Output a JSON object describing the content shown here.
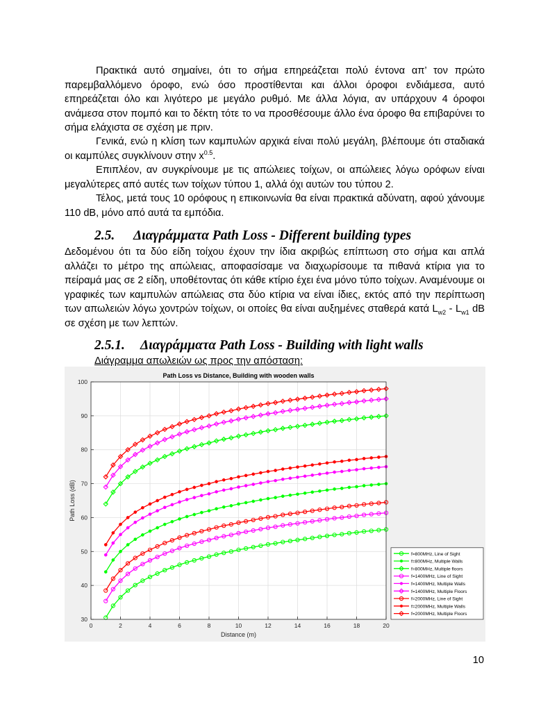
{
  "paragraphs": {
    "p1": "Πρακτικά αυτό σημαίνει, ότι το σήμα επηρεάζεται πολύ έντονα απ’ τον πρώτο παρεμβαλλόμενο όροφο, ενώ όσο προστίθενται και άλλοι όροφοι ενδιάμεσα, αυτό επηρεάζεται όλο και λιγότερο με μεγάλο ρυθμό. Με άλλα λόγια, αν υπάρχουν 4 όροφοι ανάμεσα στον πομπό και το δέκτη τότε το να προσθέσουμε άλλο ένα όροφο θα επιβαρύνει το σήμα ελάχιστα σε σχέση με πριν.",
    "p2_before": "Γενικά, ενώ η κλίση των καμπυλών αρχικά είναι πολύ μεγάλη, βλέπουμε ότι σταδιακά οι καμπύλες συγκλίνουν στην x",
    "p2_exp": "0.5",
    "p2_after": ".",
    "p3": "Επιπλέον, αν συγκρίνουμε με τις απώλειες τοίχων, οι απώλειες λόγω ορόφων είναι μεγαλύτερες από αυτές των τοίχων τύπου 1, αλλά όχι αυτών του τύπου 2.",
    "p4": "Τέλος, μετά τους 10 ορόφους η επικοινωνία θα είναι πρακτικά αδύνατη, αφού χάνουμε 110 dB, μόνο από αυτά τα εμπόδια.",
    "p5_before": "Δεδομένου ότι τα δύο είδη τοίχου έχουν την ίδια ακριβώς επίπτωση στο σήμα και απλά αλλάζει το μέτρο της απώλειας, αποφασίσαμε να διαχωρίσουμε τα πιθανά κτίρια για το πείραμά μας σε 2 είδη, υποθέτοντας ότι κάθε κτίριο έχει ένα μόνο τύπο τοίχων. Αναμένουμε οι γραφικές των καμπυλών απώλειας στα δύο κτίρια να είναι ίδιες, εκτός από την περίπτωση των απωλειών λόγω χοντρών τοίχων, οι οποίες θα είναι αυξημένες σταθερά κατά L",
    "p5_sub1": "w2",
    "p5_mid": " - L",
    "p5_sub2": "w1",
    "p5_after": " dB σε σχέση με των λεπτών."
  },
  "headings": {
    "h1_num": "2.5.",
    "h1_text": "Διαγράμματα Path Loss - Different building types",
    "h2_num": "2.5.1.",
    "h2_text": "Διαγράμματα Path Loss - Building with light walls"
  },
  "caption": "Διάγραμμα απωλειών ως προς την απόσταση:",
  "page_number": "10",
  "chart_data": {
    "type": "line",
    "title": "Path Loss vs Distance, Building with wooden walls",
    "xlabel": "Distance (m)",
    "ylabel": "Path Loss (dB)",
    "xlim": [
      0,
      20
    ],
    "ylim": [
      30,
      100
    ],
    "xticks": [
      0,
      2,
      4,
      6,
      8,
      10,
      12,
      14,
      16,
      18,
      20
    ],
    "yticks": [
      30,
      40,
      50,
      60,
      70,
      80,
      90,
      100
    ],
    "grid": true,
    "legend_position": "bottom-right",
    "x": [
      1,
      1.5,
      2,
      2.5,
      3,
      3.5,
      4,
      4.5,
      5,
      5.5,
      6,
      6.5,
      7,
      7.5,
      8,
      8.5,
      9,
      9.5,
      10,
      10.5,
      11,
      11.5,
      12,
      12.5,
      13,
      13.5,
      14,
      14.5,
      15,
      15.5,
      16,
      16.5,
      17,
      17.5,
      18,
      18.5,
      19,
      19.5,
      20
    ],
    "series": [
      {
        "name": "f=800MHz, Line of Sight",
        "color": "#00ff00",
        "marker": "circle",
        "values": [
          30.5,
          34.0,
          36.5,
          38.5,
          40.1,
          41.4,
          42.5,
          43.5,
          44.5,
          45.3,
          46.1,
          46.8,
          47.4,
          48.0,
          48.5,
          49.1,
          49.6,
          50.0,
          50.5,
          50.9,
          51.3,
          51.7,
          52.1,
          52.4,
          52.8,
          53.1,
          53.4,
          53.7,
          54.0,
          54.3,
          54.6,
          54.9,
          55.1,
          55.4,
          55.6,
          55.9,
          56.1,
          56.3,
          56.5
        ]
      },
      {
        "name": "f=800MHz, Multiple Walls",
        "color": "#00ff00",
        "marker": "dot",
        "values": [
          44.0,
          47.5,
          50.0,
          52.0,
          53.6,
          54.9,
          56.0,
          57.0,
          58.0,
          58.8,
          59.6,
          60.3,
          60.9,
          61.5,
          62.0,
          62.6,
          63.1,
          63.5,
          64.0,
          64.4,
          64.8,
          65.2,
          65.6,
          65.9,
          66.3,
          66.6,
          66.9,
          67.2,
          67.5,
          67.8,
          68.1,
          68.4,
          68.6,
          68.9,
          69.1,
          69.4,
          69.6,
          69.8,
          70.0
        ]
      },
      {
        "name": "f=800MHz, Multiple floors",
        "color": "#00ff00",
        "marker": "diamond",
        "values": [
          64.0,
          67.5,
          70.0,
          72.0,
          73.6,
          74.9,
          76.0,
          77.0,
          78.0,
          78.8,
          79.6,
          80.3,
          80.9,
          81.5,
          82.0,
          82.6,
          83.1,
          83.5,
          84.0,
          84.4,
          84.8,
          85.2,
          85.6,
          85.9,
          86.3,
          86.6,
          86.9,
          87.2,
          87.5,
          87.8,
          88.1,
          88.4,
          88.6,
          88.9,
          89.1,
          89.4,
          89.6,
          89.8,
          90.0
        ]
      },
      {
        "name": "f=1400MHz, Line of Sight",
        "color": "#ff00ff",
        "marker": "circle",
        "values": [
          35.4,
          38.9,
          41.4,
          43.4,
          45.0,
          46.3,
          47.4,
          48.4,
          49.4,
          50.2,
          51.0,
          51.7,
          52.3,
          52.9,
          53.4,
          54.0,
          54.5,
          54.9,
          55.4,
          55.8,
          56.2,
          56.6,
          57.0,
          57.3,
          57.7,
          58.0,
          58.3,
          58.6,
          58.9,
          59.2,
          59.5,
          59.8,
          60.0,
          60.3,
          60.5,
          60.8,
          61.0,
          61.2,
          61.4
        ]
      },
      {
        "name": "f=1400MHz, Multiple Walls",
        "color": "#ff00ff",
        "marker": "dot",
        "values": [
          49.0,
          52.5,
          55.0,
          57.0,
          58.6,
          59.9,
          61.0,
          62.0,
          63.0,
          63.8,
          64.6,
          65.3,
          65.9,
          66.5,
          67.0,
          67.6,
          68.1,
          68.5,
          69.0,
          69.4,
          69.8,
          70.2,
          70.6,
          70.9,
          71.3,
          71.6,
          71.9,
          72.2,
          72.5,
          72.8,
          73.1,
          73.4,
          73.6,
          73.9,
          74.1,
          74.4,
          74.6,
          74.8,
          75.0
        ]
      },
      {
        "name": "f=1400MHz, Multiple Floors",
        "color": "#ff00ff",
        "marker": "diamond",
        "values": [
          69.0,
          72.5,
          75.0,
          77.0,
          78.6,
          79.9,
          81.0,
          82.0,
          83.0,
          83.8,
          84.6,
          85.3,
          85.9,
          86.5,
          87.0,
          87.6,
          88.1,
          88.5,
          89.0,
          89.4,
          89.8,
          90.2,
          90.6,
          90.9,
          91.3,
          91.6,
          91.9,
          92.2,
          92.5,
          92.8,
          93.1,
          93.4,
          93.6,
          93.9,
          94.1,
          94.4,
          94.6,
          94.8,
          95.0
        ]
      },
      {
        "name": "f=2000MHz, Line of Sight",
        "color": "#ff0000",
        "marker": "circle",
        "values": [
          38.5,
          42.0,
          44.5,
          46.5,
          48.1,
          49.4,
          50.5,
          51.5,
          52.5,
          53.3,
          54.1,
          54.8,
          55.4,
          56.0,
          56.5,
          57.1,
          57.6,
          58.0,
          58.5,
          58.9,
          59.3,
          59.7,
          60.1,
          60.4,
          60.8,
          61.1,
          61.4,
          61.7,
          62.0,
          62.3,
          62.6,
          62.9,
          63.1,
          63.4,
          63.6,
          63.9,
          64.1,
          64.3,
          64.5
        ]
      },
      {
        "name": "f=2000MHz, Multiple Walls",
        "color": "#ff0000",
        "marker": "dot",
        "values": [
          52.0,
          55.5,
          58.0,
          60.0,
          61.6,
          62.9,
          64.0,
          65.0,
          66.0,
          66.8,
          67.6,
          68.3,
          68.9,
          69.5,
          70.0,
          70.6,
          71.1,
          71.5,
          72.0,
          72.4,
          72.8,
          73.2,
          73.6,
          73.9,
          74.3,
          74.6,
          74.9,
          75.2,
          75.5,
          75.8,
          76.1,
          76.4,
          76.6,
          76.9,
          77.1,
          77.4,
          77.6,
          77.8,
          78.0
        ]
      },
      {
        "name": "f=2000MHz, Multiple Floors",
        "color": "#ff0000",
        "marker": "diamond",
        "values": [
          72.0,
          75.5,
          78.0,
          80.0,
          81.6,
          82.9,
          84.0,
          85.0,
          86.0,
          86.8,
          87.6,
          88.3,
          88.9,
          89.5,
          90.0,
          90.6,
          91.1,
          91.5,
          92.0,
          92.4,
          92.8,
          93.2,
          93.6,
          93.9,
          94.3,
          94.6,
          94.9,
          95.2,
          95.5,
          95.8,
          96.1,
          96.4,
          96.6,
          96.9,
          97.1,
          97.4,
          97.6,
          97.8,
          98.0
        ]
      }
    ]
  }
}
